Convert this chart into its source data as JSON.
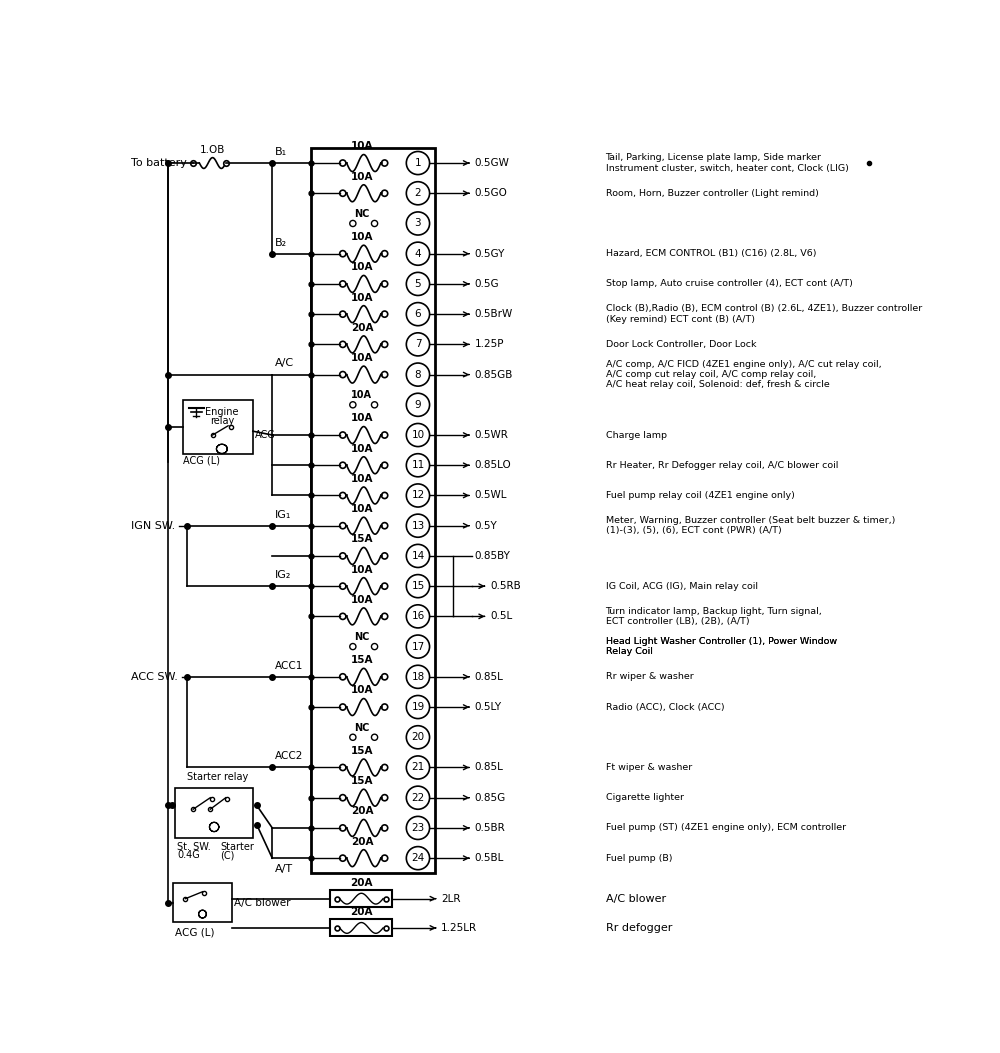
{
  "bg_color": "#ffffff",
  "fuses": [
    {
      "num": 1,
      "amp": "10A",
      "wire": "0.5GW",
      "desc": "Tail, Parking, License plate lamp, Side marker\nInstrument cluster, switch, heater cont, Clock (LIG)",
      "nc": false,
      "nc9": false
    },
    {
      "num": 2,
      "amp": "10A",
      "wire": "0.5GO",
      "desc": "Room, Horn, Buzzer controller (Light remind)",
      "nc": false,
      "nc9": false
    },
    {
      "num": 3,
      "amp": "NC",
      "wire": "",
      "desc": "",
      "nc": true,
      "nc9": false
    },
    {
      "num": 4,
      "amp": "10A",
      "wire": "0.5GY",
      "desc": "Hazard, ECM CONTROL (B1) (C16) (2.8L, V6)",
      "nc": false,
      "nc9": false
    },
    {
      "num": 5,
      "amp": "10A",
      "wire": "0.5G",
      "desc": "Stop lamp, Auto cruise controller (4), ECT cont (A/T)",
      "nc": false,
      "nc9": false
    },
    {
      "num": 6,
      "amp": "10A",
      "wire": "0.5BrW",
      "desc": "Clock (B),Radio (B), ECM control (B) (2.6L, 4ZE1), Buzzer controller\n(Key remind) ECT cont (B) (A/T)",
      "nc": false,
      "nc9": false
    },
    {
      "num": 7,
      "amp": "20A",
      "wire": "1.25P",
      "desc": "Door Lock Controller, Door Lock",
      "nc": false,
      "nc9": false
    },
    {
      "num": 8,
      "amp": "10A",
      "wire": "0.85GB",
      "desc": "A/C comp, A/C FICD (4ZE1 engine only), A/C cut relay coil,\nA/C comp cut relay coil, A/C comp relay coil,\nA/C heat relay coil, Solenoid: def, fresh & circle",
      "nc": false,
      "nc9": false
    },
    {
      "num": 9,
      "amp": "10A",
      "wire": "",
      "desc": "",
      "nc": false,
      "nc9": true
    },
    {
      "num": 10,
      "amp": "10A",
      "wire": "0.5WR",
      "desc": "Charge lamp",
      "nc": false,
      "nc9": false
    },
    {
      "num": 11,
      "amp": "10A",
      "wire": "0.85LO",
      "desc": "Rr Heater, Rr Defogger relay coil, A/C blower coil",
      "nc": false,
      "nc9": false
    },
    {
      "num": 12,
      "amp": "10A",
      "wire": "0.5WL",
      "desc": "Fuel pump relay coil (4ZE1 engine only)",
      "nc": false,
      "nc9": false
    },
    {
      "num": 13,
      "amp": "10A",
      "wire": "0.5Y",
      "desc": "Meter, Warning, Buzzer controller (Seat belt buzzer & timer,)\n(1)-(3), (5), (6), ECT cont (PWR) (A/T)",
      "nc": false,
      "nc9": false
    },
    {
      "num": 14,
      "amp": "15A",
      "wire": "0.85BY",
      "desc": "",
      "nc": false,
      "nc9": false
    },
    {
      "num": 15,
      "amp": "10A",
      "wire": "0.5RB",
      "desc": "IG Coil, ACG (IG), Main relay coil",
      "nc": false,
      "nc9": false
    },
    {
      "num": 16,
      "amp": "10A",
      "wire": "0.5L",
      "desc": "Turn indicator lamp, Backup light, Turn signal,\nECT controller (LB), (2B), (A/T)",
      "nc": false,
      "nc9": false
    },
    {
      "num": 17,
      "amp": "NC",
      "wire": "",
      "desc": "Head Light Washer Controller (1), Power Window\nRelay Coil",
      "nc": true,
      "nc9": false
    },
    {
      "num": 18,
      "amp": "15A",
      "wire": "0.85L",
      "desc": "Rr wiper & washer",
      "nc": false,
      "nc9": false
    },
    {
      "num": 19,
      "amp": "10A",
      "wire": "0.5LY",
      "desc": "Radio (ACC), Clock (ACC)",
      "nc": false,
      "nc9": false
    },
    {
      "num": 20,
      "amp": "NC",
      "wire": "",
      "desc": "",
      "nc": true,
      "nc9": false
    },
    {
      "num": 21,
      "amp": "15A",
      "wire": "0.85L",
      "desc": "Ft wiper & washer",
      "nc": false,
      "nc9": false
    },
    {
      "num": 22,
      "amp": "15A",
      "wire": "0.85G",
      "desc": "Cigarette lighter",
      "nc": false,
      "nc9": false
    },
    {
      "num": 23,
      "amp": "20A",
      "wire": "0.5BR",
      "desc": "Fuel pump (ST) (4ZE1 engine only), ECM controller",
      "nc": false,
      "nc9": false
    },
    {
      "num": 24,
      "amp": "20A",
      "wire": "0.5BL",
      "desc": "Fuel pump (B)",
      "nc": false,
      "nc9": false
    }
  ],
  "extra_fuses": [
    {
      "amp": "20A",
      "wire": "2LR",
      "desc": "A/C blower"
    },
    {
      "amp": "20A",
      "wire": "1.25LR",
      "desc": "Rr defogger"
    }
  ]
}
